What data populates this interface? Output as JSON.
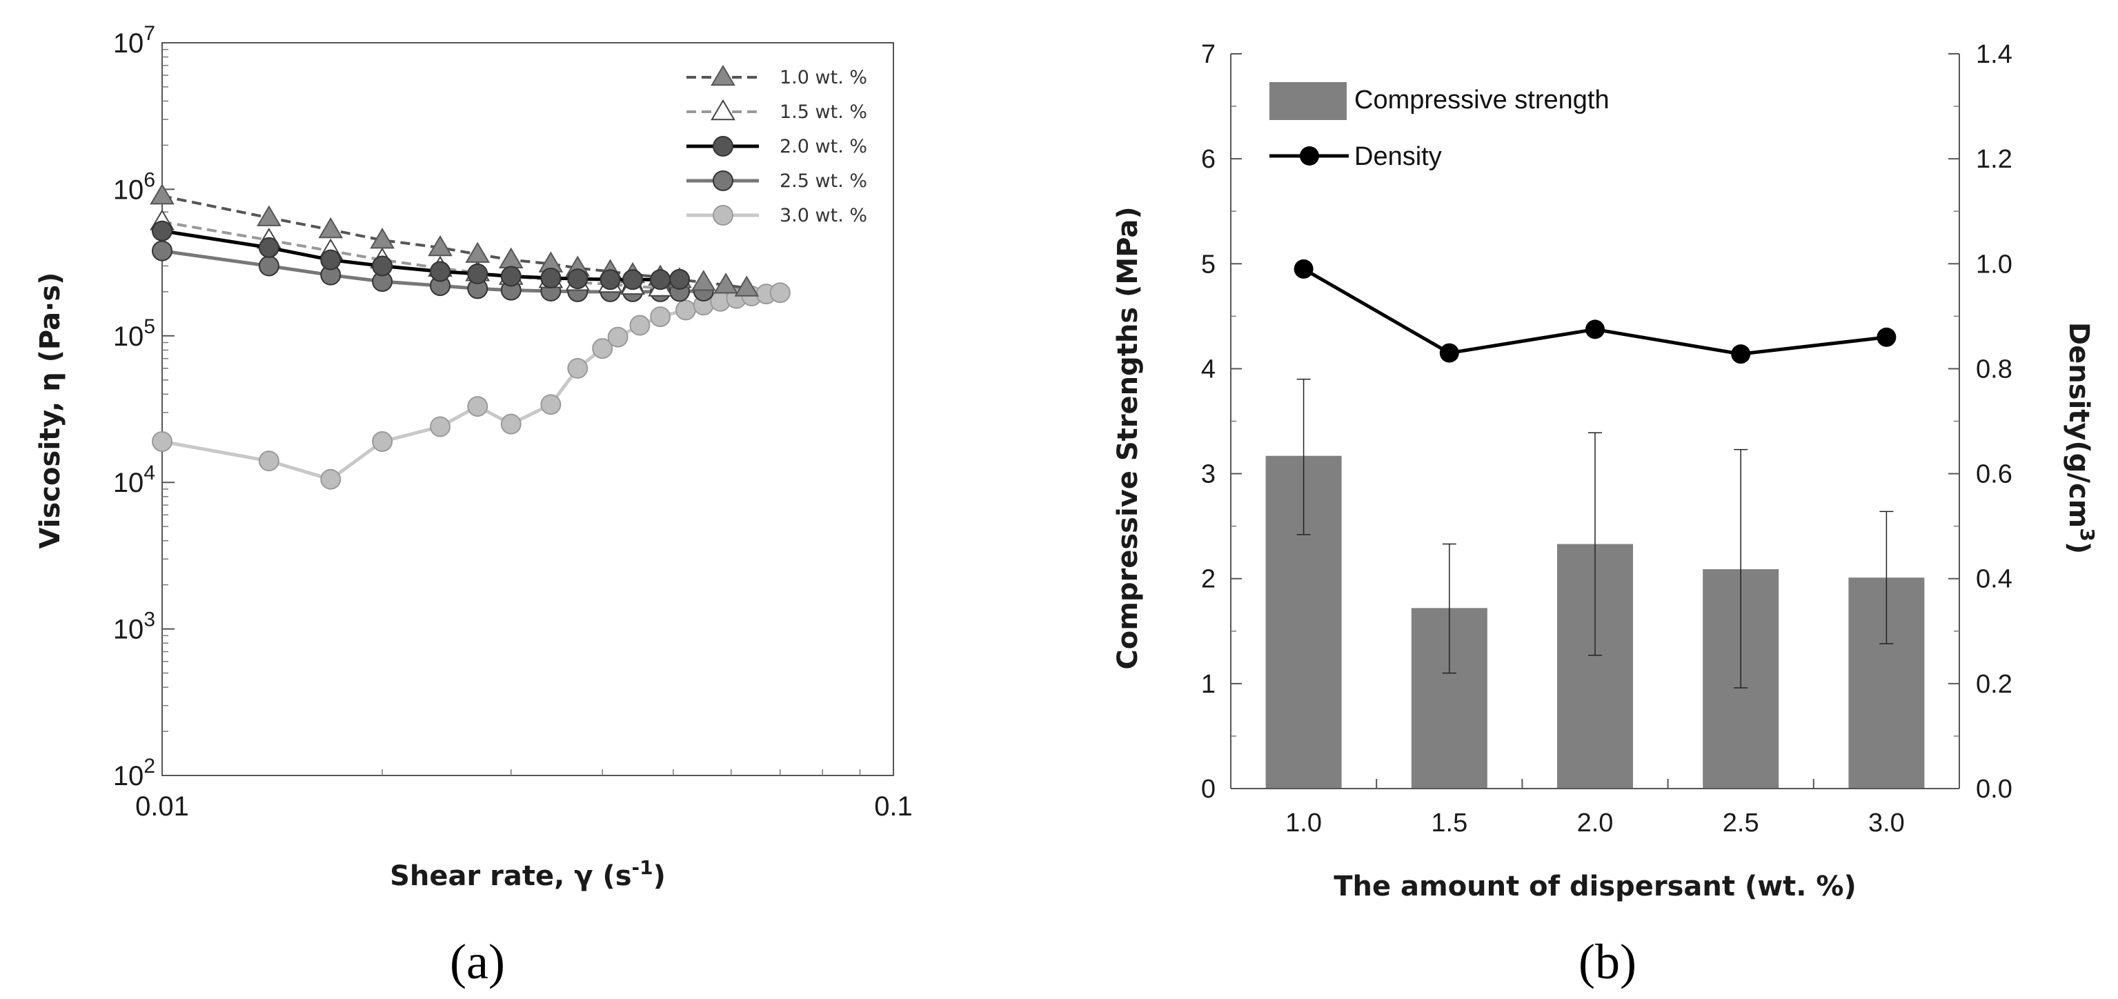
{
  "chart_data": [
    {
      "panel": "(a)",
      "type": "line",
      "log_scale": {
        "x": true,
        "y": true
      },
      "xlabel": "Shear rate, γ (s",
      "xlabel_sup": "-1",
      "xlabel_end": ")",
      "ylabel": "Viscosity, η (Pa·s)",
      "xlim": [
        0.01,
        0.1
      ],
      "ylim": [
        100,
        10000000
      ],
      "x_ticks": [
        {
          "value": 0.01,
          "label": "0.01"
        },
        {
          "value": 0.1,
          "label": "0.1"
        }
      ],
      "y_ticks": [
        {
          "value": 100,
          "base": "10",
          "exp": "2"
        },
        {
          "value": 1000,
          "base": "10",
          "exp": "3"
        },
        {
          "value": 10000,
          "base": "10",
          "exp": "4"
        },
        {
          "value": 100000,
          "base": "10",
          "exp": "5"
        },
        {
          "value": 1000000,
          "base": "10",
          "exp": "6"
        },
        {
          "value": 10000000,
          "base": "10",
          "exp": "7"
        }
      ],
      "series": [
        {
          "name": "1.0 wt. %",
          "marker": "triangle",
          "filled": true,
          "dashed": true,
          "line_color": "#555555",
          "fill_color": "#888888",
          "x": [
            0.01,
            0.014,
            0.017,
            0.02,
            0.024,
            0.027,
            0.03,
            0.034,
            0.037,
            0.041,
            0.044,
            0.048,
            0.051,
            0.055,
            0.059,
            0.063
          ],
          "y": [
            900000,
            640000,
            530000,
            450000,
            400000,
            360000,
            330000,
            310000,
            290000,
            275000,
            262000,
            252000,
            242000,
            232000,
            222000,
            212000
          ]
        },
        {
          "name": "1.5 wt. %",
          "marker": "triangle",
          "filled": false,
          "dashed": true,
          "line_color": "#999999",
          "fill_color": "#ffffff",
          "x": [
            0.01,
            0.014,
            0.017,
            0.02,
            0.024,
            0.027,
            0.03,
            0.034,
            0.037,
            0.041,
            0.044,
            0.048
          ],
          "y": [
            600000,
            450000,
            380000,
            330000,
            290000,
            270000,
            255000,
            242000,
            232000,
            225000,
            218000,
            212000
          ]
        },
        {
          "name": "2.0 wt. %",
          "marker": "circle",
          "filled": true,
          "dashed": false,
          "line_color": "#000000",
          "fill_color": "#555555",
          "x": [
            0.01,
            0.014,
            0.017,
            0.02,
            0.024,
            0.027,
            0.03,
            0.034,
            0.037,
            0.041,
            0.044,
            0.048,
            0.051
          ],
          "y": [
            520000,
            400000,
            330000,
            300000,
            275000,
            265000,
            255000,
            248000,
            245000,
            242000,
            242000,
            242000,
            243000
          ]
        },
        {
          "name": "2.5 wt. %",
          "marker": "circle",
          "filled": true,
          "dashed": false,
          "line_color": "#777777",
          "fill_color": "#777777",
          "x": [
            0.01,
            0.014,
            0.017,
            0.02,
            0.024,
            0.027,
            0.03,
            0.034,
            0.037,
            0.041,
            0.044,
            0.048,
            0.051,
            0.055
          ],
          "y": [
            380000,
            300000,
            260000,
            235000,
            220000,
            210000,
            205000,
            202000,
            200000,
            200000,
            200000,
            200000,
            201000,
            202000
          ]
        },
        {
          "name": "3.0 wt. %",
          "marker": "circle",
          "filled": true,
          "dashed": false,
          "line_color": "#c8c8c8",
          "fill_color": "#bdbdbd",
          "x": [
            0.01,
            0.014,
            0.017,
            0.02,
            0.024,
            0.027,
            0.03,
            0.034,
            0.037,
            0.04,
            0.042,
            0.045,
            0.048,
            0.052,
            0.055,
            0.058,
            0.061,
            0.064,
            0.067,
            0.07
          ],
          "y": [
            19000,
            14000,
            10500,
            19000,
            24000,
            33000,
            25000,
            34000,
            60000,
            82000,
            98000,
            118000,
            135000,
            150000,
            162000,
            172000,
            180000,
            187000,
            193000,
            197000
          ]
        }
      ]
    },
    {
      "panel": "(b)",
      "type": "bar",
      "categories": [
        "1.0",
        "1.5",
        "2.0",
        "2.5",
        "3.0"
      ],
      "xlabel": "The amount of dispersant (wt. %)",
      "ylabel_left": "Compressive Strengths (MPa)",
      "ylabel_right": "Density(g/cm",
      "ylabel_right_sup": "3",
      "ylabel_right_end": ")",
      "ylim_left": [
        0,
        7
      ],
      "ylim_right": [
        0,
        1.4
      ],
      "y_ticks_left": [
        "0",
        "1",
        "2",
        "3",
        "4",
        "5",
        "6",
        "7"
      ],
      "y_ticks_right": [
        "0.0",
        "0.2",
        "0.4",
        "0.6",
        "0.8",
        "1.0",
        "1.2",
        "1.4"
      ],
      "series": [
        {
          "name": "Compressive strength",
          "type": "bar",
          "axis": "left",
          "color": "#808080",
          "values": [
            3.17,
            1.72,
            2.33,
            2.09,
            2.01
          ],
          "error_low": [
            2.42,
            1.1,
            1.27,
            0.96,
            1.38
          ],
          "error_high": [
            3.9,
            2.33,
            3.39,
            3.23,
            2.64
          ]
        },
        {
          "name": "Density",
          "type": "line",
          "axis": "right",
          "color": "#000000",
          "values": [
            0.99,
            0.83,
            0.875,
            0.828,
            0.86
          ]
        }
      ]
    }
  ]
}
